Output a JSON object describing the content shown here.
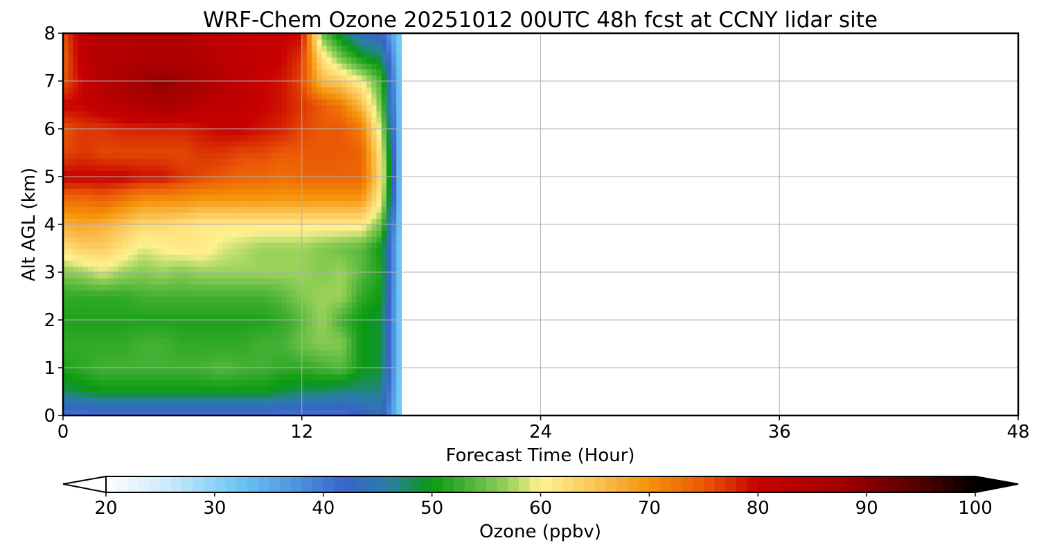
{
  "chart_data": {
    "type": "heatmap",
    "title": "WRF-Chem Ozone  20251012 00UTC 48h fcst at CCNY lidar site",
    "xlabel": "Forecast Time (Hour)",
    "ylabel": "Alt AGL (km)",
    "xlim": [
      0,
      48
    ],
    "ylim": [
      0,
      8
    ],
    "xticks": [
      "0",
      "12",
      "24",
      "36",
      "48"
    ],
    "yticks": [
      "0",
      "1",
      "2",
      "3",
      "4",
      "5",
      "6",
      "7",
      "8"
    ],
    "grid": true,
    "colorbar": {
      "label": "Ozone  (ppbv)",
      "min": 20,
      "max": 100,
      "ticks": [
        "20",
        "30",
        "40",
        "50",
        "60",
        "70",
        "80",
        "90",
        "100"
      ],
      "extend": "both",
      "orientation": "horizontal",
      "colors": [
        [
          20,
          "#ffffff"
        ],
        [
          26,
          "#c8e8fa"
        ],
        [
          32,
          "#6ec8f5"
        ],
        [
          38,
          "#4a8fe0"
        ],
        [
          42,
          "#3a62c8"
        ],
        [
          46,
          "#2a7ea8"
        ],
        [
          50,
          "#0a9a10"
        ],
        [
          53,
          "#44b035"
        ],
        [
          57,
          "#9ad25a"
        ],
        [
          60,
          "#fff290"
        ],
        [
          63,
          "#fdd870"
        ],
        [
          67,
          "#f8b03a"
        ],
        [
          70,
          "#f59208"
        ],
        [
          75,
          "#ea5a06"
        ],
        [
          80,
          "#c80000"
        ],
        [
          88,
          "#a00000"
        ],
        [
          95,
          "#500000"
        ],
        [
          100,
          "#000000"
        ]
      ]
    },
    "data_extent_hours": [
      0,
      17
    ],
    "y": [
      0,
      0.5,
      1,
      1.5,
      2,
      2.5,
      3,
      3.5,
      4,
      4.5,
      5,
      5.5,
      6,
      6.5,
      7,
      7.5,
      8
    ],
    "x": [
      0,
      1,
      2,
      3,
      4,
      5,
      6,
      7,
      8,
      9,
      10,
      11,
      12,
      13,
      14,
      15,
      16,
      17
    ],
    "z": [
      [
        40,
        40,
        40,
        40,
        40,
        40,
        40,
        40,
        40,
        40,
        40,
        40,
        40,
        40,
        40,
        42,
        44,
        30
      ],
      [
        48,
        49,
        50,
        50,
        50,
        50,
        50,
        50,
        50,
        50,
        50,
        49,
        48,
        48,
        47,
        47,
        47,
        30
      ],
      [
        51,
        52,
        53,
        53,
        53,
        53,
        53,
        53,
        54,
        53,
        53,
        52,
        52,
        53,
        54,
        50,
        49,
        30
      ],
      [
        52,
        52,
        52,
        52,
        53,
        53,
        52,
        52,
        52,
        52,
        53,
        53,
        55,
        56,
        56,
        50,
        49,
        30
      ],
      [
        51,
        51,
        51,
        51,
        51,
        51,
        51,
        51,
        51,
        51,
        51,
        52,
        54,
        57,
        53,
        50,
        49,
        30
      ],
      [
        52,
        52,
        52,
        52,
        53,
        53,
        53,
        53,
        53,
        53,
        53,
        54,
        56,
        57,
        57,
        52,
        50,
        30
      ],
      [
        56,
        57,
        59,
        57,
        56,
        57,
        56,
        57,
        57,
        57,
        57,
        57,
        57,
        56,
        57,
        54,
        51,
        30
      ],
      [
        62,
        64,
        64,
        62,
        59,
        60,
        61,
        61,
        59,
        58,
        57,
        57,
        57,
        56,
        55,
        54,
        50,
        30
      ],
      [
        67,
        68,
        67,
        65,
        63,
        63,
        62,
        61,
        61,
        61,
        61,
        61,
        61,
        61,
        61,
        61,
        55,
        30
      ],
      [
        73,
        73,
        74,
        72,
        70,
        70,
        70,
        69,
        69,
        69,
        69,
        69,
        69,
        69,
        69,
        69,
        60,
        30
      ],
      [
        80,
        80,
        80,
        80,
        79,
        79,
        77,
        76,
        75,
        74,
        74,
        73,
        74,
        74,
        74,
        74,
        62,
        30
      ],
      [
        76,
        77,
        76,
        76,
        76,
        76,
        76,
        77,
        77,
        76,
        76,
        75,
        75,
        75,
        75,
        74,
        61,
        30
      ],
      [
        75,
        77,
        77,
        78,
        78,
        78,
        78,
        79,
        80,
        80,
        79,
        78,
        76,
        75,
        75,
        72,
        58,
        30
      ],
      [
        80,
        80,
        82,
        83,
        85,
        86,
        85,
        83,
        82,
        81,
        80,
        79,
        77,
        75,
        72,
        66,
        55,
        30
      ],
      [
        75,
        80,
        84,
        86,
        88,
        90,
        88,
        86,
        84,
        82,
        80,
        79,
        76,
        66,
        64,
        60,
        53,
        30
      ],
      [
        74,
        82,
        84,
        84,
        85,
        85,
        85,
        84,
        82,
        82,
        81,
        80,
        77,
        62,
        55,
        50,
        48,
        30
      ],
      [
        75,
        82,
        84,
        84,
        84,
        84,
        84,
        82,
        82,
        81,
        80,
        80,
        80,
        55,
        48,
        44,
        42,
        30
      ]
    ]
  }
}
